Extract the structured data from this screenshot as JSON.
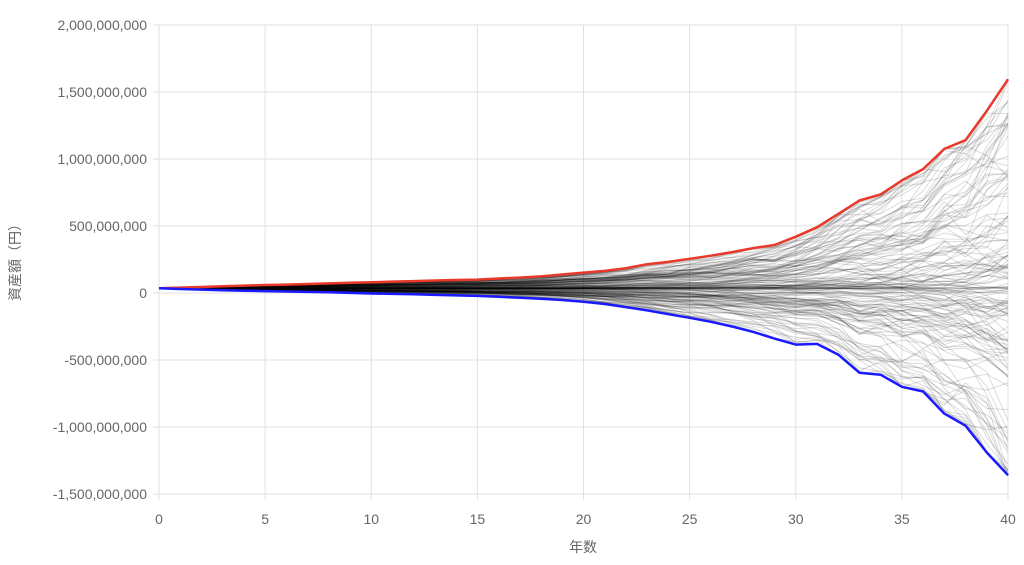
{
  "chart_data": {
    "type": "line",
    "title": "",
    "xlabel": "年数",
    "ylabel": "資産額（円）",
    "xlim": [
      0,
      40
    ],
    "ylim": [
      -1500000000,
      2000000000
    ],
    "x_ticks": [
      0,
      5,
      10,
      15,
      20,
      25,
      30,
      35,
      40
    ],
    "x_tick_labels": [
      "0",
      "5",
      "10",
      "15",
      "20",
      "25",
      "30",
      "35",
      "40"
    ],
    "y_ticks": [
      -1500000000,
      -1000000000,
      -500000000,
      0,
      500000000,
      1000000000,
      1500000000,
      2000000000
    ],
    "y_tick_labels": [
      "-1,500,000,000",
      "-1,000,000,000",
      "-500,000,000",
      "0",
      "500,000,000",
      "1,000,000,000",
      "1,500,000,000",
      "2,000,000,000"
    ],
    "grid": true,
    "legend": "none",
    "x": [
      0,
      1,
      2,
      3,
      4,
      5,
      6,
      7,
      8,
      9,
      10,
      11,
      12,
      13,
      14,
      15,
      16,
      17,
      18,
      19,
      20,
      21,
      22,
      23,
      24,
      25,
      26,
      27,
      28,
      29,
      30,
      31,
      32,
      33,
      34,
      35,
      36,
      37,
      38,
      39,
      40
    ],
    "series": [
      {
        "color": "#e8392b",
        "values": [
          35000000,
          40000000,
          45000000,
          50000000,
          55000000,
          60000000,
          63000000,
          67000000,
          72000000,
          76000000,
          80000000,
          85000000,
          89000000,
          93000000,
          97000000,
          100000000,
          108000000,
          115000000,
          124000000,
          138000000,
          152000000,
          165000000,
          185000000,
          215000000,
          232000000,
          255000000,
          278000000,
          305000000,
          335000000,
          358000000,
          420000000,
          490000000,
          590000000,
          690000000,
          735000000,
          840000000,
          925000000,
          1075000000,
          1140000000,
          1360000000,
          1595000000
        ]
      },
      {
        "color": "#1a1aff",
        "values": [
          35000000,
          30000000,
          25000000,
          21000000,
          17000000,
          14000000,
          11000000,
          8000000,
          5000000,
          1000000,
          -4000000,
          -7000000,
          -10000000,
          -14000000,
          -18000000,
          -22000000,
          -28000000,
          -35000000,
          -43000000,
          -52000000,
          -65000000,
          -82000000,
          -105000000,
          -130000000,
          -158000000,
          -185000000,
          -215000000,
          -250000000,
          -290000000,
          -340000000,
          -385000000,
          -380000000,
          -460000000,
          -595000000,
          -610000000,
          -700000000,
          -735000000,
          -900000000,
          -990000000,
          -1190000000,
          -1360000000
        ]
      }
    ],
    "simulation_paths": {
      "count": 200,
      "color": "#000000",
      "opacity": 0.14,
      "start_value": 35000000,
      "upper_envelope": [
        35000000,
        40000000,
        45000000,
        50000000,
        55000000,
        60000000,
        63000000,
        67000000,
        72000000,
        76000000,
        80000000,
        85000000,
        89000000,
        93000000,
        97000000,
        100000000,
        108000000,
        115000000,
        124000000,
        138000000,
        152000000,
        165000000,
        185000000,
        215000000,
        232000000,
        255000000,
        278000000,
        305000000,
        335000000,
        358000000,
        420000000,
        490000000,
        590000000,
        690000000,
        735000000,
        840000000,
        925000000,
        1075000000,
        1140000000,
        1360000000,
        1595000000
      ],
      "lower_envelope": [
        35000000,
        30000000,
        25000000,
        21000000,
        17000000,
        14000000,
        11000000,
        8000000,
        5000000,
        1000000,
        -4000000,
        -7000000,
        -10000000,
        -14000000,
        -18000000,
        -22000000,
        -28000000,
        -35000000,
        -43000000,
        -52000000,
        -65000000,
        -82000000,
        -105000000,
        -130000000,
        -158000000,
        -185000000,
        -215000000,
        -250000000,
        -290000000,
        -340000000,
        -385000000,
        -380000000,
        -460000000,
        -595000000,
        -610000000,
        -700000000,
        -735000000,
        -900000000,
        -990000000,
        -1190000000,
        -1360000000
      ]
    }
  }
}
